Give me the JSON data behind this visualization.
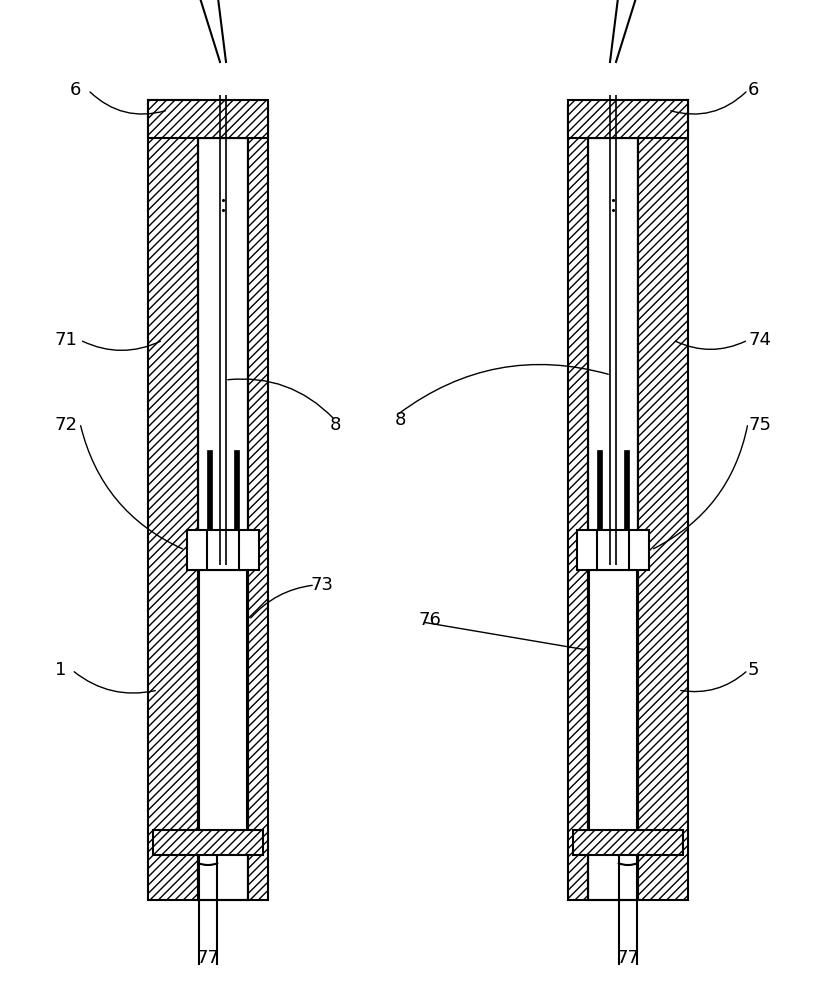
{
  "bg_color": "#ffffff",
  "labels": {
    "6L": "6",
    "6R": "6",
    "71": "71",
    "72": "72",
    "73": "73",
    "74": "74",
    "75": "75",
    "76": "76",
    "1": "1",
    "5": "5",
    "8L": "8",
    "8R": "8",
    "77L": "77",
    "77R": "77"
  },
  "fig_w": 8.36,
  "fig_h": 10.0
}
